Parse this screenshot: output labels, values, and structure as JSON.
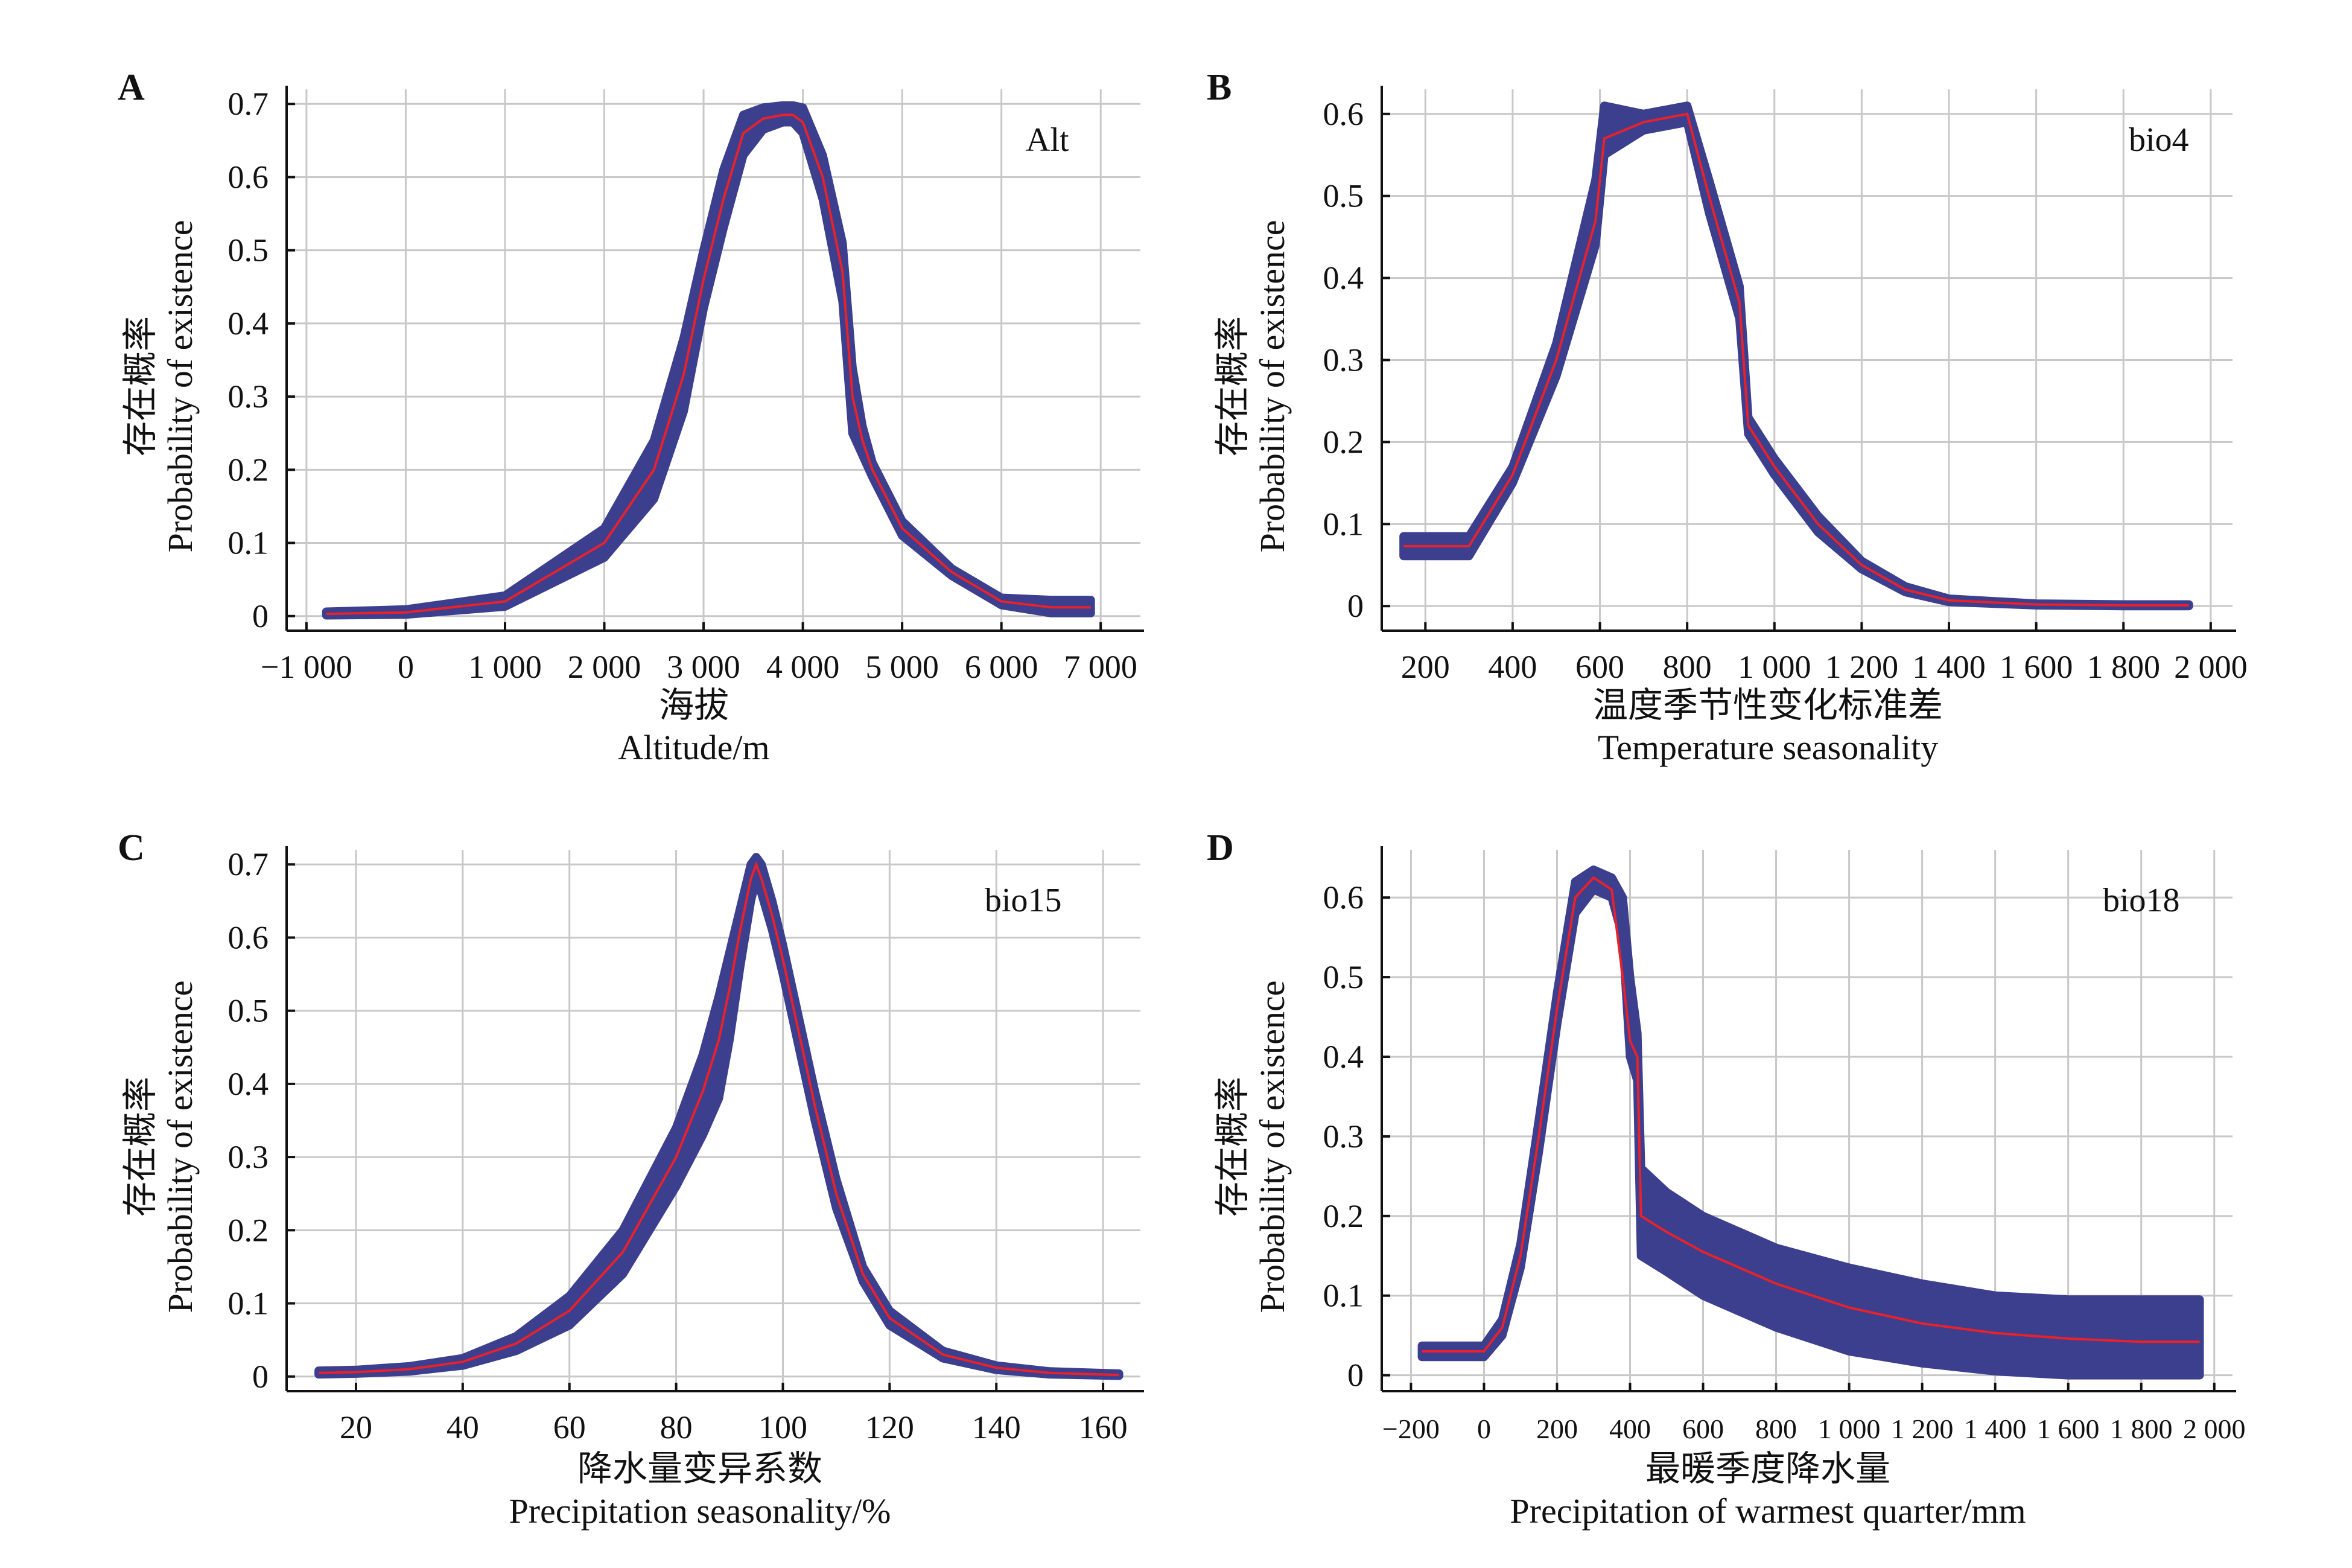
{
  "figure": {
    "panels": [
      {
        "letter": "A",
        "label": "Alt",
        "ytitle_cn": "存在概率",
        "ytitle_en": "Probability of existence",
        "xtitle_cn": "海拔",
        "xtitle_en": "Altitude/m",
        "xticks": [
          -1000,
          0,
          1000,
          2000,
          3000,
          4000,
          5000,
          6000,
          7000
        ],
        "xtick_labels": [
          "−1 000",
          "0",
          "1 000",
          "2 000",
          "3 000",
          "4 000",
          "5 000",
          "6 000",
          "7 000"
        ],
        "yticks": [
          0,
          0.1,
          0.2,
          0.3,
          0.4,
          0.5,
          0.6,
          0.7
        ],
        "ytick_labels": [
          "0",
          "0.1",
          "0.2",
          "0.3",
          "0.4",
          "0.5",
          "0.6",
          "0.7"
        ]
      },
      {
        "letter": "B",
        "label": "bio4",
        "ytitle_cn": "存在概率",
        "ytitle_en": "Probability of existence",
        "xtitle_cn": "温度季节性变化标准差",
        "xtitle_en": "Temperature seasonality",
        "xticks": [
          200,
          400,
          600,
          800,
          1000,
          1200,
          1400,
          1600,
          1800,
          2000
        ],
        "xtick_labels": [
          "200",
          "400",
          "600",
          "800",
          "1 000",
          "1 200",
          "1 400",
          "1 600",
          "1 800",
          "2 000"
        ],
        "yticks": [
          0,
          0.1,
          0.2,
          0.3,
          0.4,
          0.5,
          0.6
        ],
        "ytick_labels": [
          "0",
          "0.1",
          "0.2",
          "0.3",
          "0.4",
          "0.5",
          "0.6"
        ]
      },
      {
        "letter": "C",
        "label": "bio15",
        "ytitle_cn": "存在概率",
        "ytitle_en": "Probability of existence",
        "xtitle_cn": "降水量变异系数",
        "xtitle_en": "Precipitation seasonality/%",
        "xticks": [
          20,
          40,
          60,
          80,
          100,
          120,
          140,
          160
        ],
        "xtick_labels": [
          "20",
          "40",
          "60",
          "80",
          "100",
          "120",
          "140",
          "160"
        ],
        "yticks": [
          0,
          0.1,
          0.2,
          0.3,
          0.4,
          0.5,
          0.6,
          0.7
        ],
        "ytick_labels": [
          "0",
          "0.1",
          "0.2",
          "0.3",
          "0.4",
          "0.5",
          "0.6",
          "0.7"
        ]
      },
      {
        "letter": "D",
        "label": "bio18",
        "ytitle_cn": "存在概率",
        "ytitle_en": "Probability of existence",
        "xtitle_cn": "最暖季度降水量",
        "xtitle_en": "Precipitation of warmest quarter/mm",
        "xticks": [
          -200,
          0,
          200,
          400,
          600,
          800,
          1000,
          1200,
          1400,
          1600,
          1800,
          2000
        ],
        "xtick_labels": [
          "−200",
          "0",
          "200",
          "400",
          "600",
          "800",
          "1 000",
          "1 200",
          "1 400",
          "1 600",
          "1 800",
          "2 000"
        ],
        "yticks": [
          0,
          0.1,
          0.2,
          0.3,
          0.4,
          0.5,
          0.6
        ],
        "ytick_labels": [
          "0",
          "0.1",
          "0.2",
          "0.3",
          "0.4",
          "0.5",
          "0.6"
        ]
      }
    ],
    "colors": {
      "band": "#3c3f8e",
      "mean_line": "#e8212b",
      "grid": "#c8c8c8",
      "axis": "#111111"
    }
  },
  "chart_data": [
    {
      "type": "area",
      "title": "",
      "xlabel": "海拔 Altitude/m",
      "ylabel": "存在概率 Probability of existence",
      "xlim": [
        -1200,
        7400
      ],
      "ylim": [
        -0.02,
        0.72
      ],
      "grid": true,
      "x": [
        -800,
        0,
        1000,
        2000,
        2500,
        2800,
        3000,
        3200,
        3400,
        3600,
        3800,
        3900,
        4000,
        4200,
        4400,
        4500,
        4600,
        4700,
        5000,
        5500,
        6000,
        6500,
        6900
      ],
      "series": [
        {
          "name": "mean",
          "values": [
            0.003,
            0.005,
            0.02,
            0.1,
            0.2,
            0.33,
            0.46,
            0.57,
            0.66,
            0.68,
            0.685,
            0.685,
            0.675,
            0.6,
            0.47,
            0.3,
            0.24,
            0.2,
            0.12,
            0.06,
            0.02,
            0.012,
            0.012
          ]
        },
        {
          "name": "upper",
          "values": [
            0.006,
            0.009,
            0.028,
            0.12,
            0.24,
            0.38,
            0.5,
            0.61,
            0.685,
            0.695,
            0.698,
            0.698,
            0.695,
            0.63,
            0.51,
            0.34,
            0.26,
            0.21,
            0.13,
            0.065,
            0.025,
            0.022,
            0.022
          ]
        },
        {
          "name": "lower",
          "values": [
            0.001,
            0.002,
            0.013,
            0.08,
            0.16,
            0.28,
            0.42,
            0.53,
            0.63,
            0.665,
            0.675,
            0.675,
            0.66,
            0.57,
            0.43,
            0.25,
            0.22,
            0.19,
            0.11,
            0.055,
            0.015,
            0.004,
            0.004
          ]
        }
      ]
    },
    {
      "type": "area",
      "title": "",
      "xlabel": "温度季节性变化标准差 Temperature seasonality",
      "ylabel": "存在概率 Probability of existence",
      "xlim": [
        100,
        2050
      ],
      "ylim": [
        -0.03,
        0.63
      ],
      "grid": true,
      "x": [
        150,
        300,
        400,
        500,
        590,
        610,
        700,
        800,
        850,
        920,
        940,
        1000,
        1100,
        1200,
        1300,
        1400,
        1600,
        1800,
        1950
      ],
      "series": [
        {
          "name": "mean",
          "values": [
            0.073,
            0.073,
            0.16,
            0.3,
            0.47,
            0.57,
            0.59,
            0.6,
            0.5,
            0.37,
            0.22,
            0.17,
            0.1,
            0.05,
            0.02,
            0.007,
            0.002,
            0.001,
            0.001
          ]
        },
        {
          "name": "upper",
          "values": [
            0.085,
            0.085,
            0.17,
            0.32,
            0.52,
            0.61,
            0.6,
            0.61,
            0.52,
            0.39,
            0.23,
            0.18,
            0.11,
            0.055,
            0.024,
            0.009,
            0.003,
            0.002,
            0.002
          ]
        },
        {
          "name": "lower",
          "values": [
            0.061,
            0.061,
            0.15,
            0.28,
            0.44,
            0.55,
            0.58,
            0.59,
            0.48,
            0.35,
            0.21,
            0.16,
            0.09,
            0.045,
            0.017,
            0.005,
            0.001,
            0.0,
            0.0
          ]
        }
      ]
    },
    {
      "type": "area",
      "title": "",
      "xlabel": "降水量变异系数 Precipitation seasonality/%",
      "ylabel": "存在概率 Probability of existence",
      "xlim": [
        7,
        167
      ],
      "ylim": [
        -0.02,
        0.72
      ],
      "grid": true,
      "x": [
        13,
        20,
        30,
        40,
        50,
        60,
        70,
        80,
        85,
        88,
        90,
        92,
        94,
        95,
        96,
        98,
        100,
        103,
        106,
        110,
        115,
        120,
        130,
        140,
        150,
        163
      ],
      "series": [
        {
          "name": "mean",
          "values": [
            0.005,
            0.006,
            0.01,
            0.02,
            0.045,
            0.09,
            0.17,
            0.3,
            0.39,
            0.46,
            0.53,
            0.61,
            0.68,
            0.7,
            0.68,
            0.63,
            0.57,
            0.47,
            0.37,
            0.25,
            0.14,
            0.08,
            0.03,
            0.012,
            0.005,
            0.002
          ]
        },
        {
          "name": "upper",
          "values": [
            0.008,
            0.009,
            0.014,
            0.025,
            0.055,
            0.11,
            0.2,
            0.34,
            0.44,
            0.52,
            0.58,
            0.64,
            0.7,
            0.71,
            0.7,
            0.65,
            0.59,
            0.49,
            0.39,
            0.27,
            0.15,
            0.09,
            0.035,
            0.015,
            0.007,
            0.004
          ]
        },
        {
          "name": "lower",
          "values": [
            0.003,
            0.004,
            0.007,
            0.015,
            0.035,
            0.07,
            0.14,
            0.26,
            0.33,
            0.38,
            0.46,
            0.56,
            0.65,
            0.68,
            0.66,
            0.61,
            0.55,
            0.45,
            0.35,
            0.23,
            0.13,
            0.07,
            0.025,
            0.009,
            0.003,
            0.001
          ]
        }
      ]
    },
    {
      "type": "area",
      "title": "",
      "xlabel": "最暖季度降水量 Precipitation of warmest quarter/mm",
      "ylabel": "存在概率 Probability of existence",
      "xlim": [
        -280,
        2050
      ],
      "ylim": [
        -0.02,
        0.66
      ],
      "grid": true,
      "x": [
        -170,
        0,
        50,
        100,
        150,
        200,
        250,
        300,
        350,
        380,
        400,
        420,
        430,
        500,
        600,
        700,
        800,
        1000,
        1200,
        1400,
        1600,
        1800,
        1960
      ],
      "series": [
        {
          "name": "mean",
          "values": [
            0.03,
            0.03,
            0.06,
            0.15,
            0.3,
            0.46,
            0.6,
            0.625,
            0.61,
            0.5,
            0.42,
            0.4,
            0.2,
            0.18,
            0.155,
            0.135,
            0.115,
            0.085,
            0.065,
            0.053,
            0.046,
            0.042,
            0.042
          ]
        },
        {
          "name": "upper",
          "values": [
            0.037,
            0.037,
            0.07,
            0.165,
            0.32,
            0.48,
            0.62,
            0.635,
            0.625,
            0.6,
            0.5,
            0.43,
            0.26,
            0.23,
            0.2,
            0.18,
            0.16,
            0.135,
            0.115,
            0.1,
            0.095,
            0.095,
            0.095
          ]
        },
        {
          "name": "lower",
          "values": [
            0.023,
            0.023,
            0.05,
            0.135,
            0.28,
            0.44,
            0.58,
            0.61,
            0.6,
            0.55,
            0.4,
            0.37,
            0.15,
            0.13,
            0.1,
            0.08,
            0.06,
            0.03,
            0.015,
            0.005,
            0.0,
            0.0,
            0.0
          ]
        }
      ]
    }
  ]
}
